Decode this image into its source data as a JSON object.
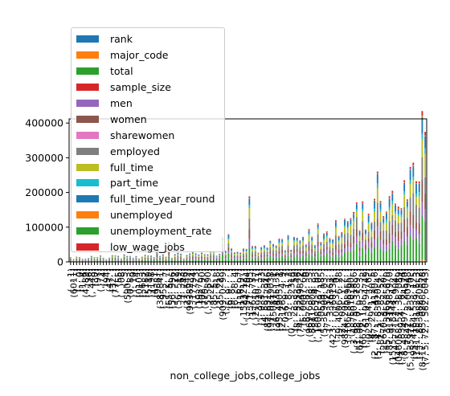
{
  "chart_data": {
    "type": "bar",
    "stacked": true,
    "xlabel": "non_college_jobs,college_jobs",
    "ylabel": "",
    "ylim": [
      0,
      412000
    ],
    "yticks": [
      0,
      100000,
      200000,
      300000,
      400000
    ],
    "ytick_labels": [
      "0",
      "100000",
      "200000",
      "300000",
      "400000"
    ],
    "grid": false,
    "legend_placement": "upper-left",
    "n_categories": 120,
    "series": [
      {
        "name": "rank",
        "color": "#1f77b4"
      },
      {
        "name": "major_code",
        "color": "#ff7f0e"
      },
      {
        "name": "total",
        "color": "#2ca02c"
      },
      {
        "name": "sample_size",
        "color": "#d62728"
      },
      {
        "name": "men",
        "color": "#9467bd"
      },
      {
        "name": "women",
        "color": "#8c564b"
      },
      {
        "name": "sharewomen",
        "color": "#e377c2"
      },
      {
        "name": "employed",
        "color": "#7f7f7f"
      },
      {
        "name": "full_time",
        "color": "#bcbd22"
      },
      {
        "name": "part_time",
        "color": "#17becf"
      },
      {
        "name": "full_time_year_round",
        "color": "#1f77b4"
      },
      {
        "name": "unemployed",
        "color": "#ff7f0e"
      },
      {
        "name": "unemployment_rate",
        "color": "#2ca02c"
      },
      {
        "name": "low_wage_jobs",
        "color": "#d62728"
      }
    ],
    "peak_totals": [
      {
        "index": 118,
        "value": 395000
      },
      {
        "index": 119,
        "value": 330000
      },
      {
        "index": 103,
        "value": 210000
      },
      {
        "index": 117,
        "value": 235000
      },
      {
        "index": 60,
        "value": 175000
      },
      {
        "index": 108,
        "value": 170000
      }
    ]
  }
}
